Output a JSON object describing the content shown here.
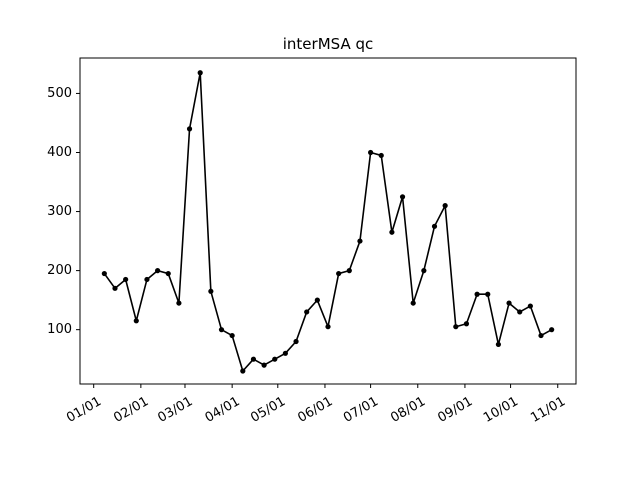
{
  "chart_data": {
    "type": "line",
    "title": "interMSA qc",
    "xlabel": "",
    "ylabel": "",
    "grid": false,
    "line_color": "#000000",
    "marker": "circle",
    "xlim": [
      "2019-12-23",
      "2020-11-13"
    ],
    "ylim": [
      8,
      560
    ],
    "x_ticks": [
      "2020-01-01",
      "2020-02-01",
      "2020-03-01",
      "2020-04-01",
      "2020-05-01",
      "2020-06-01",
      "2020-07-01",
      "2020-08-01",
      "2020-09-01",
      "2020-10-01",
      "2020-11-01"
    ],
    "x_tick_labels": [
      "01/01",
      "02/01",
      "03/01",
      "04/01",
      "05/01",
      "06/01",
      "07/01",
      "08/01",
      "09/01",
      "10/01",
      "11/01"
    ],
    "y_ticks": [
      100,
      200,
      300,
      400,
      500
    ],
    "y_tick_labels": [
      "100",
      "200",
      "300",
      "400",
      "500"
    ],
    "series": [
      {
        "x": [
          "2020-01-08",
          "2020-01-15",
          "2020-01-22",
          "2020-01-29",
          "2020-02-05",
          "2020-02-12",
          "2020-02-19",
          "2020-02-26",
          "2020-03-04",
          "2020-03-11",
          "2020-03-18",
          "2020-03-25",
          "2020-04-01",
          "2020-04-08",
          "2020-04-15",
          "2020-04-22",
          "2020-04-29",
          "2020-05-06",
          "2020-05-13",
          "2020-05-20",
          "2020-05-27",
          "2020-06-03",
          "2020-06-10",
          "2020-06-17",
          "2020-06-24",
          "2020-07-01",
          "2020-07-08",
          "2020-07-15",
          "2020-07-22",
          "2020-07-29",
          "2020-08-05",
          "2020-08-12",
          "2020-08-19",
          "2020-08-26",
          "2020-09-02",
          "2020-09-09",
          "2020-09-16",
          "2020-09-23",
          "2020-09-30",
          "2020-10-07",
          "2020-10-14",
          "2020-10-21",
          "2020-10-28"
        ],
        "values": [
          195,
          170,
          185,
          115,
          185,
          200,
          195,
          145,
          440,
          535,
          165,
          100,
          90,
          30,
          50,
          40,
          50,
          60,
          80,
          130,
          150,
          105,
          195,
          200,
          250,
          400,
          395,
          265,
          325,
          145,
          200,
          275,
          310,
          105,
          110,
          160,
          160,
          75,
          145,
          130,
          140,
          90,
          100
        ]
      }
    ]
  }
}
